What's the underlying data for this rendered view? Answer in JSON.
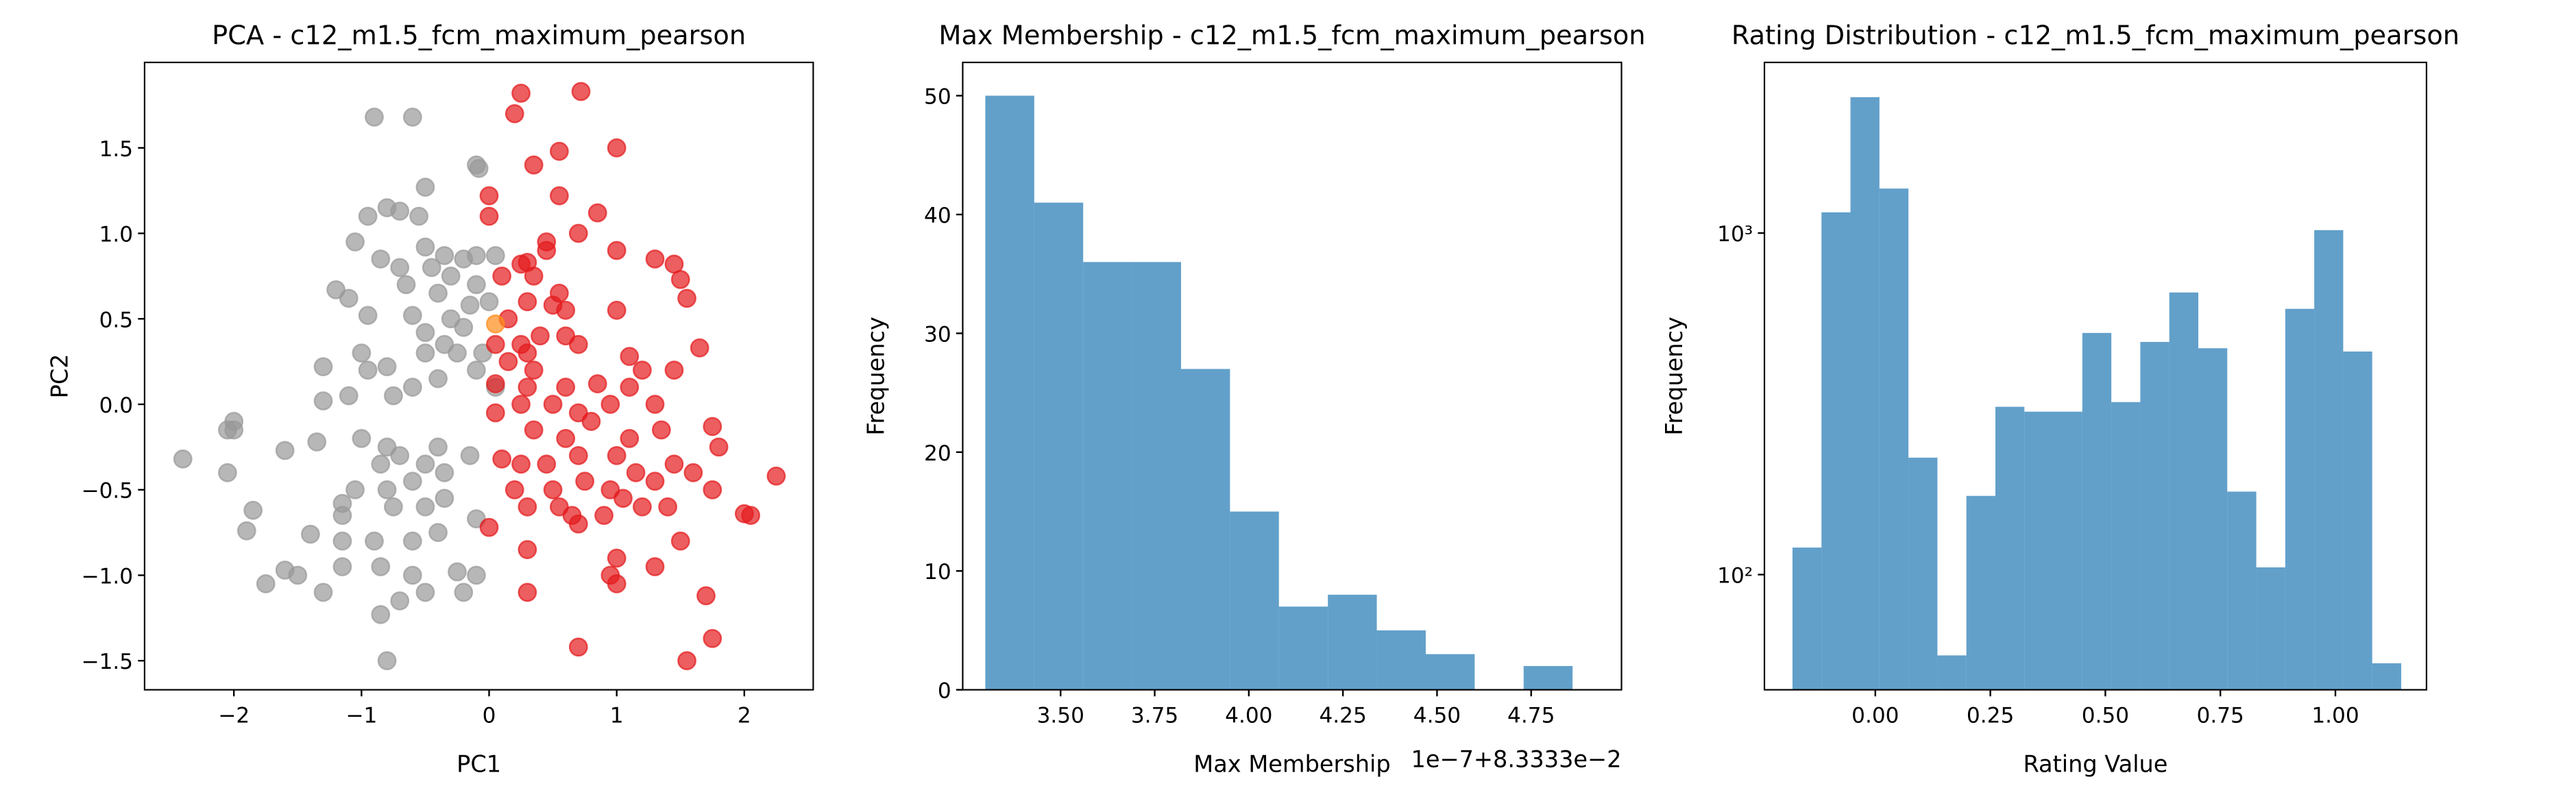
{
  "chart_data": [
    {
      "type": "scatter",
      "title": "PCA - c12_m1.5_fcm_maximum_pearson",
      "xlabel": "PC1",
      "ylabel": "PC2",
      "xlim": [
        -2.7,
        2.54
      ],
      "ylim": [
        -1.67,
        2.0
      ],
      "xticks": [
        {
          "value": -2,
          "label": "−2"
        },
        {
          "value": -1,
          "label": "−1"
        },
        0,
        1,
        2
      ],
      "yticks": [
        {
          "value": -1.5,
          "label": "−1.5"
        },
        {
          "value": -1,
          "label": "−1.0"
        },
        {
          "value": -0.5,
          "label": "−0.5"
        },
        {
          "value": 0,
          "label": "0.0"
        },
        0.5,
        {
          "value": 1,
          "label": "1.0"
        },
        1.5
      ],
      "series": [
        {
          "color": "#999999",
          "x": [
            -0.9,
            -0.6,
            -0.1,
            -0.08,
            -0.5,
            -0.7,
            -0.95,
            -0.8,
            -0.55,
            -1.05,
            -0.85,
            -0.5,
            -0.35,
            -0.2,
            -0.1,
            0.05,
            -1.2,
            -1.1,
            -0.7,
            -0.45,
            -0.3,
            -0.65,
            -0.4,
            -0.1,
            0.0,
            -0.15,
            -0.95,
            -0.6,
            -0.3,
            -0.2,
            -0.5,
            -0.35,
            -1.3,
            -1.0,
            -0.8,
            -0.5,
            -0.25,
            -0.05,
            -1.1,
            -0.95,
            -0.75,
            -0.6,
            -0.4,
            -0.1,
            0.05,
            -1.3,
            -2.0,
            -2.05,
            -2.0,
            -2.4,
            -1.6,
            -1.35,
            -1.0,
            -0.8,
            -0.7,
            -0.85,
            -0.5,
            -0.35,
            -0.4,
            -0.15,
            -2.05,
            -1.85,
            -1.9,
            -1.05,
            -0.8,
            -0.6,
            -0.35,
            -1.15,
            -1.15,
            -0.75,
            -0.5,
            -0.1,
            -1.4,
            -1.15,
            -0.9,
            -0.6,
            -0.4,
            -1.6,
            -1.5,
            -1.75,
            -1.15,
            -0.85,
            -0.6,
            -0.25,
            -0.1,
            -1.3,
            -0.7,
            -0.85,
            -0.5,
            -0.2,
            -0.8
          ],
          "y": [
            1.68,
            1.68,
            1.4,
            1.38,
            1.27,
            1.13,
            1.1,
            1.15,
            1.1,
            0.95,
            0.85,
            0.92,
            0.87,
            0.85,
            0.87,
            0.87,
            0.67,
            0.62,
            0.8,
            0.8,
            0.75,
            0.7,
            0.65,
            0.7,
            0.6,
            0.58,
            0.52,
            0.52,
            0.5,
            0.45,
            0.42,
            0.35,
            0.22,
            0.3,
            0.22,
            0.3,
            0.3,
            0.3,
            0.05,
            0.2,
            0.05,
            0.1,
            0.15,
            0.2,
            0.1,
            0.02,
            -0.1,
            -0.15,
            -0.15,
            -0.32,
            -0.27,
            -0.22,
            -0.2,
            -0.25,
            -0.3,
            -0.35,
            -0.35,
            -0.4,
            -0.25,
            -0.3,
            -0.4,
            -0.62,
            -0.74,
            -0.5,
            -0.5,
            -0.45,
            -0.55,
            -0.58,
            -0.65,
            -0.6,
            -0.6,
            -0.67,
            -0.76,
            -0.8,
            -0.8,
            -0.8,
            -0.75,
            -0.97,
            -1.0,
            -1.05,
            -0.95,
            -0.95,
            -1.0,
            -0.98,
            -1.0,
            -1.1,
            -1.15,
            -1.23,
            -1.1,
            -1.1,
            -1.5
          ]
        },
        {
          "color": "#e41a1c",
          "x": [
            0.25,
            0.72,
            0.2,
            0.55,
            1.0,
            0.35,
            0.0,
            0.55,
            0.85,
            0.0,
            0.7,
            0.45,
            0.45,
            1.0,
            1.3,
            1.45,
            1.5,
            0.3,
            0.25,
            0.35,
            0.1,
            0.55,
            1.55,
            0.3,
            0.5,
            0.6,
            1.0,
            0.15,
            0.05,
            0.25,
            0.4,
            0.6,
            0.7,
            0.3,
            0.15,
            0.35,
            1.1,
            1.2,
            1.45,
            1.65,
            0.05,
            0.3,
            0.6,
            0.85,
            1.1,
            0.25,
            0.5,
            0.7,
            0.95,
            1.3,
            0.05,
            0.35,
            0.6,
            0.8,
            1.1,
            1.35,
            1.75,
            1.8,
            0.1,
            0.25,
            0.45,
            0.7,
            1.0,
            1.15,
            1.3,
            1.45,
            1.6,
            1.75,
            0.2,
            0.5,
            0.75,
            0.95,
            1.05,
            1.2,
            1.4,
            0.0,
            0.3,
            0.55,
            0.65,
            0.9,
            1.5,
            2.0,
            2.05,
            2.25,
            0.3,
            0.7,
            1.0,
            1.3,
            0.95,
            0.3,
            1.0,
            1.7,
            0.7,
            1.75,
            1.55
          ],
          "y": [
            1.82,
            1.83,
            1.7,
            1.48,
            1.5,
            1.4,
            1.22,
            1.22,
            1.12,
            1.1,
            1.0,
            0.95,
            0.9,
            0.9,
            0.85,
            0.82,
            0.73,
            0.83,
            0.82,
            0.75,
            0.75,
            0.65,
            0.62,
            0.6,
            0.58,
            0.55,
            0.55,
            0.5,
            0.35,
            0.35,
            0.4,
            0.4,
            0.35,
            0.3,
            0.25,
            0.2,
            0.28,
            0.2,
            0.2,
            0.33,
            0.12,
            0.1,
            0.1,
            0.12,
            0.1,
            0.0,
            0.0,
            -0.05,
            0.0,
            0.0,
            -0.05,
            -0.15,
            -0.2,
            -0.1,
            -0.2,
            -0.15,
            -0.13,
            -0.25,
            -0.32,
            -0.35,
            -0.35,
            -0.3,
            -0.3,
            -0.4,
            -0.45,
            -0.35,
            -0.4,
            -0.5,
            -0.5,
            -0.5,
            -0.45,
            -0.5,
            -0.55,
            -0.6,
            -0.6,
            -0.72,
            -0.6,
            -0.6,
            -0.65,
            -0.65,
            -0.8,
            -0.64,
            -0.65,
            -0.42,
            -0.85,
            -0.7,
            -0.9,
            -0.95,
            -1.0,
            -1.1,
            -1.05,
            -1.12,
            -1.42,
            -1.37,
            -1.5
          ]
        },
        {
          "color": "#ff8c1a",
          "x": [
            0.05
          ],
          "y": [
            0.47
          ]
        }
      ]
    },
    {
      "type": "histogram",
      "title": "Max Membership - c12_m1.5_fcm_maximum_pearson",
      "xlabel": "Max Membership",
      "ylabel": "Frequency",
      "offset_text": "1e−7+8.3333e−2",
      "color": "#1f77b4",
      "bins": [
        3.3,
        3.43,
        3.56,
        3.69,
        3.82,
        3.95,
        4.08,
        4.21,
        4.34,
        4.47,
        4.6,
        4.73,
        4.86
      ],
      "values": [
        50,
        41,
        36,
        36,
        27,
        15,
        7,
        8,
        5,
        3,
        0,
        2
      ],
      "xlim": [
        3.24,
        4.99
      ],
      "ylim": [
        0,
        52.8
      ],
      "xticks": [
        {
          "value": 3.5,
          "label": "3.50"
        },
        {
          "value": 3.75,
          "label": "3.75"
        },
        {
          "value": 4.0,
          "label": "4.00"
        },
        {
          "value": 4.25,
          "label": "4.25"
        },
        {
          "value": 4.5,
          "label": "4.50"
        },
        {
          "value": 4.75,
          "label": "4.75"
        }
      ],
      "yticks": [
        0,
        10,
        20,
        30,
        40,
        50
      ]
    },
    {
      "type": "histogram",
      "title": "Rating Distribution - c12_m1.5_fcm_maximum_pearson",
      "xlabel": "Rating Value",
      "ylabel": "Frequency",
      "color": "#1f77b4",
      "ylog": true,
      "bins": [
        -0.18,
        -0.117,
        -0.054,
        0.009,
        0.072,
        0.135,
        0.198,
        0.261,
        0.324,
        0.387,
        0.45,
        0.513,
        0.576,
        0.639,
        0.702,
        0.765,
        0.828,
        0.891,
        0.954,
        1.017,
        1.08,
        1.143
      ],
      "values": [
        120,
        1150,
        2500,
        1350,
        220,
        58,
        170,
        310,
        300,
        300,
        510,
        320,
        480,
        670,
        460,
        175,
        105,
        600,
        1020,
        450,
        55
      ],
      "xlim": [
        -0.241,
        1.198
      ],
      "ylim": [
        46,
        3160
      ],
      "xticks": [
        {
          "value": 0,
          "label": "0.00"
        },
        {
          "value": 0.25,
          "label": "0.25"
        },
        {
          "value": 0.5,
          "label": "0.50"
        },
        {
          "value": 0.75,
          "label": "0.75"
        },
        {
          "value": 1,
          "label": "1.00"
        }
      ],
      "yticks": [
        {
          "value": 100,
          "label": "10²"
        },
        {
          "value": 1000,
          "label": "10³"
        }
      ]
    }
  ]
}
